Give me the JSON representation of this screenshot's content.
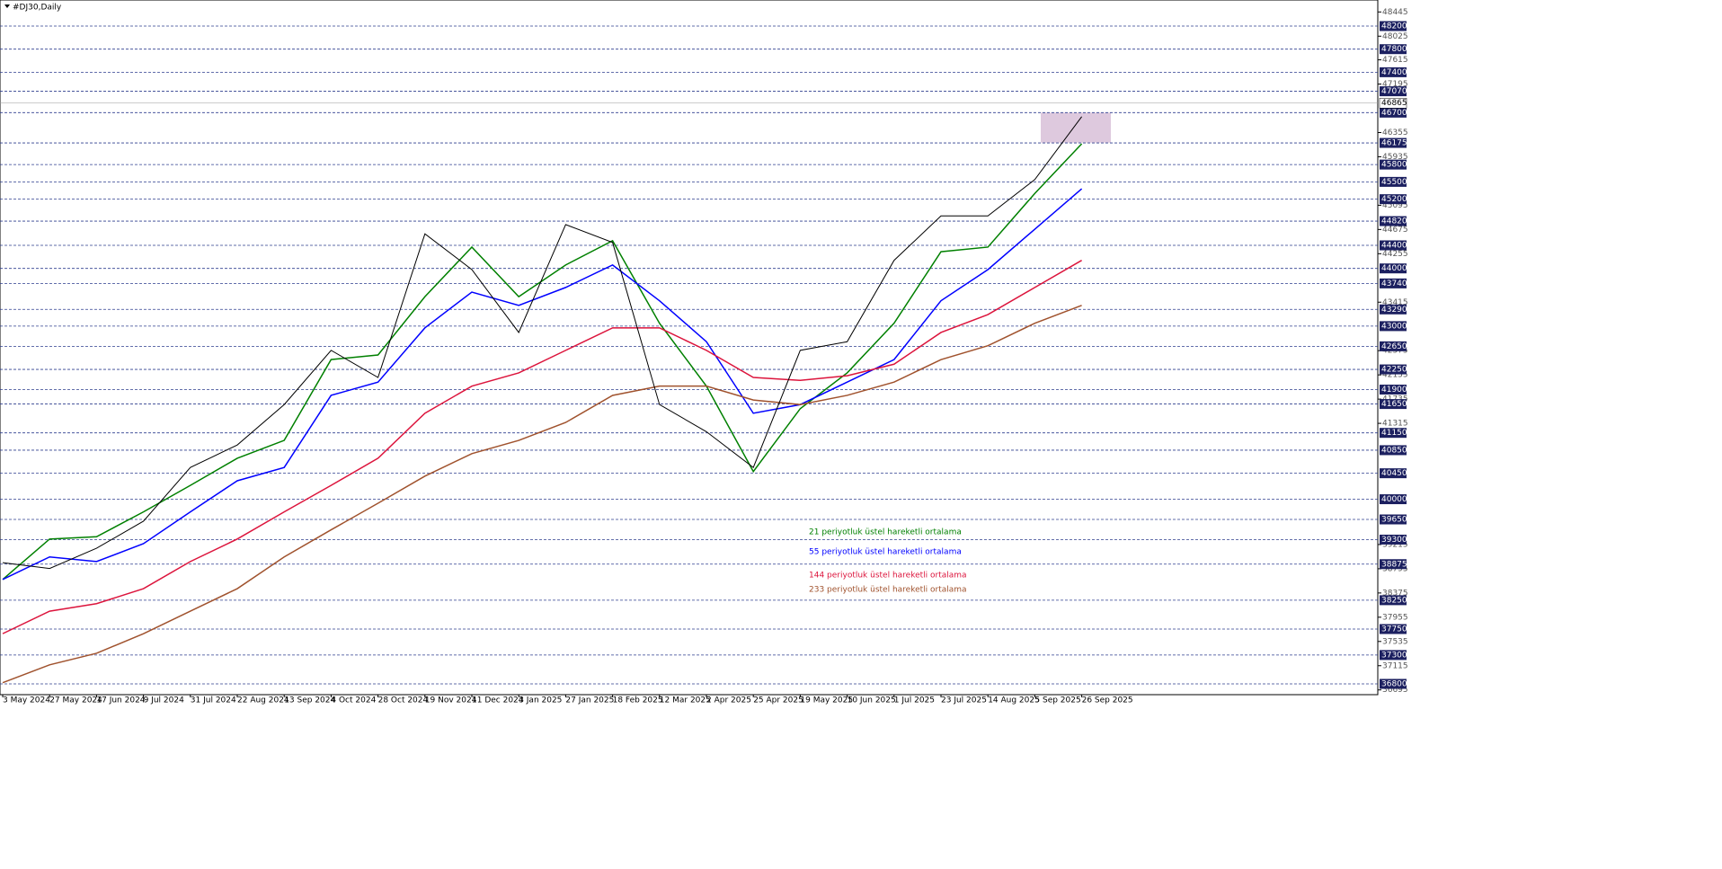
{
  "chart_data": {
    "type": "line",
    "title": "#DJ30,Daily",
    "categories": [
      "3 May 2024",
      "27 May 2024",
      "17 Jun 2024",
      "9 Jul 2024",
      "31 Jul 2024",
      "22 Aug 2024",
      "13 Sep 2024",
      "4 Oct 2024",
      "28 Oct 2024",
      "19 Nov 2024",
      "11 Dec 2024",
      "3 Jan 2025",
      "27 Jan 2025",
      "18 Feb 2025",
      "12 Mar 2025",
      "2 Apr 2025",
      "25 Apr 2025",
      "19 May 2025",
      "10 Jun 2025",
      "1 Jul 2025",
      "23 Jul 2025",
      "14 Aug 2025",
      "5 Sep 2025",
      "26 Sep 2025"
    ],
    "values": [
      38900,
      38800,
      39150,
      39620,
      40550,
      40940,
      41640,
      42580,
      42110,
      44600,
      43980,
      42890,
      44760,
      44450,
      41640,
      41170,
      40550,
      42580,
      42730,
      44140,
      44910,
      44910,
      45540,
      46630
    ],
    "color": "#000000",
    "series": [
      {
        "name": "21 periyotluk üstel hareketli ortalama",
        "color": "#008000",
        "values": [
          38610,
          39310,
          39350,
          39780,
          40240,
          40710,
          41020,
          42420,
          42500,
          43510,
          44370,
          43510,
          44060,
          44480,
          43050,
          41960,
          40480,
          41570,
          42190,
          43050,
          44290,
          44370,
          45300,
          46160
        ]
      },
      {
        "name": "55 periyotluk üstel hareketli ortalama",
        "color": "#0000ff",
        "values": [
          38610,
          39000,
          38920,
          39230,
          39780,
          40320,
          40550,
          41800,
          42030,
          42970,
          43590,
          43360,
          43670,
          44060,
          43440,
          42730,
          41490,
          41640,
          42030,
          42420,
          43440,
          43980,
          44680,
          45380
        ]
      },
      {
        "name": "144 periyotluk üstel hareketli ortalama",
        "color": "#dc143c",
        "values": [
          37670,
          38060,
          38190,
          38450,
          38920,
          39310,
          39780,
          40240,
          40710,
          41490,
          41960,
          42190,
          42580,
          42970,
          42970,
          42580,
          42110,
          42060,
          42140,
          42340,
          42890,
          43200,
          43670,
          44140
        ]
      },
      {
        "name": "233 periyotluk üstel hareketli ortalama",
        "color": "#a0522d",
        "values": [
          36820,
          37130,
          37330,
          37670,
          38060,
          38450,
          39000,
          39470,
          39930,
          40400,
          40790,
          41020,
          41330,
          41800,
          41960,
          41960,
          41720,
          41640,
          41800,
          42030,
          42420,
          42660,
          43050,
          43360
        ]
      }
    ],
    "ylim": [
      36613,
      48652
    ],
    "yticks": [
      48445,
      48025,
      47615,
      47195,
      46355,
      45935,
      45095,
      44675,
      44255,
      43415,
      42575,
      42155,
      41735,
      41315,
      39215,
      38795,
      38375,
      37955,
      37535,
      37115,
      36695
    ],
    "levels": [
      48200,
      47800,
      47400,
      47070,
      46700,
      46175,
      45800,
      45500,
      45200,
      44820,
      44400,
      44000,
      43740,
      43290,
      43000,
      42650,
      42250,
      41900,
      41650,
      41150,
      40850,
      40450,
      40000,
      39650,
      39300,
      38875,
      38250,
      37750,
      37300,
      36800
    ],
    "current_price": 46865,
    "zone": [
      46180,
      46700
    ],
    "zone_color": "#d8bfd8"
  }
}
